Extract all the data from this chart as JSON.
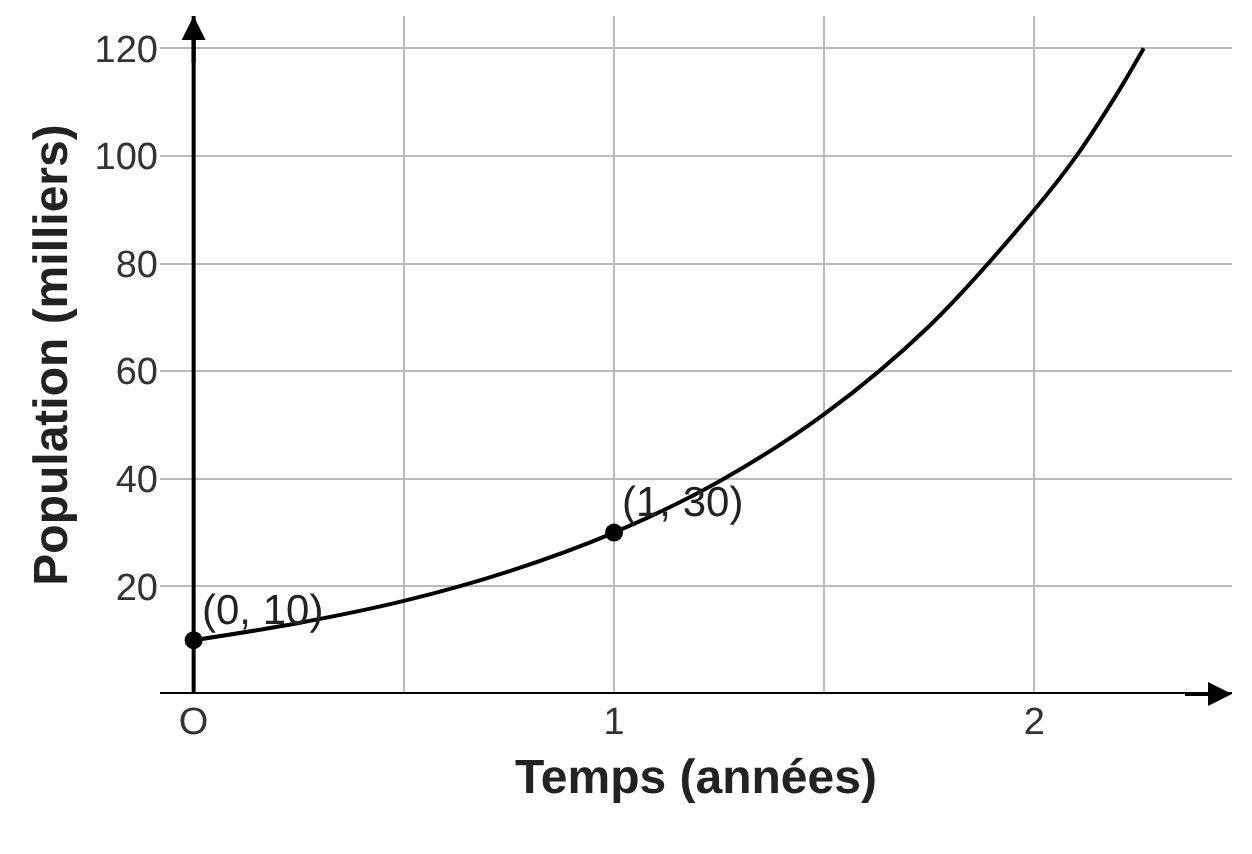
{
  "chart_data": {
    "type": "line",
    "xlabel": "Temps (années)",
    "ylabel": "Population (milliers)",
    "xlim": [
      -0.08,
      2.47
    ],
    "ylim": [
      0,
      126
    ],
    "xticks": [
      {
        "value": 0,
        "label": "O"
      },
      {
        "value": 0.5,
        "label": null
      },
      1,
      {
        "value": 1.5,
        "label": null
      },
      2
    ],
    "yticks": [
      20,
      40,
      60,
      80,
      100,
      120
    ],
    "grid": true,
    "series": [
      {
        "color": "#000000",
        "marker": "none",
        "x": [
          0,
          0.25,
          0.5,
          0.75,
          1,
          1.25,
          1.5,
          1.75,
          2,
          2.1,
          2.2,
          2.26
        ],
        "values": [
          10,
          13.2,
          17.3,
          22.8,
          30,
          39.5,
          52,
          68.4,
          90,
          100,
          112,
          120
        ]
      },
      {
        "type": "scatter",
        "color": "#000000",
        "marker": "circle",
        "x": [
          0,
          1
        ],
        "values": [
          10,
          30
        ]
      }
    ],
    "annotations": [
      {
        "text": "(0, 10)",
        "x": 0,
        "y": 10
      },
      {
        "text": "(1, 30)",
        "x": 1,
        "y": 30
      }
    ]
  }
}
